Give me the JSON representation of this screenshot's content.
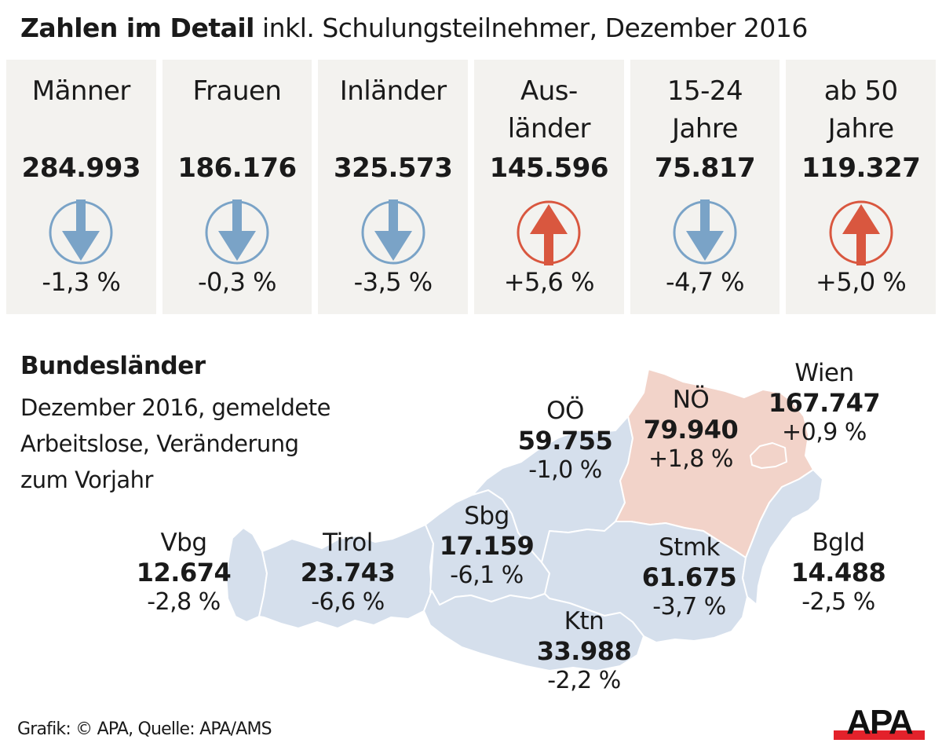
{
  "title": {
    "bold": "Zahlen im Detail",
    "rest": "inkl. Schulungsteilnehmer, Dezember 2016"
  },
  "colors": {
    "down": "#7aa3c7",
    "up": "#d9573f",
    "card_bg": "#f3f2ef",
    "map_blue": "#d5dfec",
    "map_pink": "#f2d3c9"
  },
  "cards": [
    {
      "label_line1": "Männer",
      "label_line2": "",
      "value": "284.993",
      "trend": "down",
      "trend_icon": "arrow-down-icon",
      "change": "-1,3 %"
    },
    {
      "label_line1": "Frauen",
      "label_line2": "",
      "value": "186.176",
      "trend": "down",
      "trend_icon": "arrow-down-icon",
      "change": "-0,3 %"
    },
    {
      "label_line1": "Inländer",
      "label_line2": "",
      "value": "325.573",
      "trend": "down",
      "trend_icon": "arrow-down-icon",
      "change": "-3,5 %"
    },
    {
      "label_line1": "Aus-",
      "label_line2": "länder",
      "value": "145.596",
      "trend": "up",
      "trend_icon": "arrow-up-icon",
      "change": "+5,6 %"
    },
    {
      "label_line1": "15-24",
      "label_line2": "Jahre",
      "value": "75.817",
      "trend": "down",
      "trend_icon": "arrow-down-icon",
      "change": "-4,7 %"
    },
    {
      "label_line1": "ab 50",
      "label_line2": "Jahre",
      "value": "119.327",
      "trend": "up",
      "trend_icon": "arrow-up-icon",
      "change": "+5,0 %"
    }
  ],
  "bundeslaender": {
    "title": "Bundesländer",
    "subtitle_line1": "Dezember 2016, gemeldete",
    "subtitle_line2": "Arbeitslose, Veränderung",
    "subtitle_line3": "zum Vorjahr",
    "regions": [
      {
        "name": "Vbg",
        "value": "12.674",
        "change": "-2,8 %",
        "trend": "down"
      },
      {
        "name": "Tirol",
        "value": "23.743",
        "change": "-6,6 %",
        "trend": "down"
      },
      {
        "name": "Sbg",
        "value": "17.159",
        "change": "-6,1 %",
        "trend": "down"
      },
      {
        "name": "OÖ",
        "value": "59.755",
        "change": "-1,0 %",
        "trend": "down"
      },
      {
        "name": "NÖ",
        "value": "79.940",
        "change": "+1,8 %",
        "trend": "up"
      },
      {
        "name": "Wien",
        "value": "167.747",
        "change": "+0,9 %",
        "trend": "up"
      },
      {
        "name": "Stmk",
        "value": "61.675",
        "change": "-3,7 %",
        "trend": "down"
      },
      {
        "name": "Ktn",
        "value": "33.988",
        "change": "-2,2 %",
        "trend": "down"
      },
      {
        "name": "Bgld",
        "value": "14.488",
        "change": "-2,5 %",
        "trend": "down"
      }
    ]
  },
  "footer": {
    "credit": "Grafik: © APA, Quelle: APA/AMS",
    "logo_text": "APA"
  }
}
